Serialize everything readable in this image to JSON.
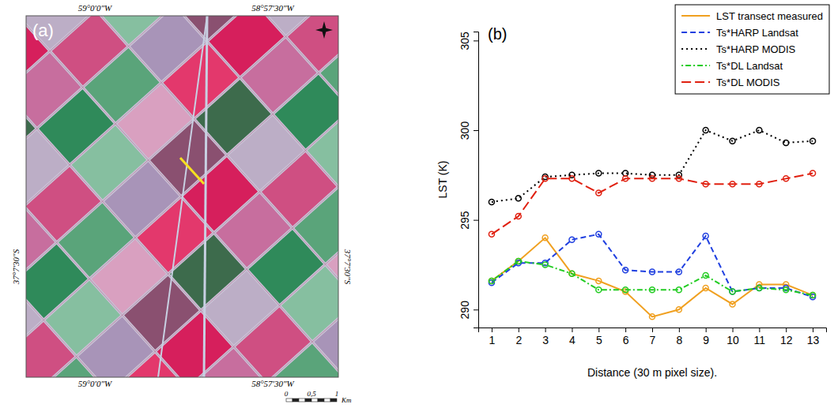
{
  "chart_data": {
    "type": "line",
    "title": "(b)",
    "x_label": "Distance (30 m pixel size).",
    "y_label": "LST (K)",
    "x": [
      1,
      2,
      3,
      4,
      5,
      6,
      7,
      8,
      9,
      10,
      11,
      12,
      13
    ],
    "xlim": [
      0.5,
      13.5
    ],
    "xticks": [
      1,
      2,
      3,
      4,
      5,
      6,
      7,
      8,
      9,
      10,
      11,
      12,
      13
    ],
    "ylim": [
      289,
      305.5
    ],
    "yticks": [
      290,
      295,
      300,
      305
    ],
    "grid": false,
    "legend": "top-right",
    "series": [
      {
        "name": "LST transect measured",
        "color": "#f0a020",
        "marker": "circle",
        "line_style": "solid",
        "values": [
          291.6,
          292.7,
          294.0,
          292.0,
          291.6,
          291.0,
          289.6,
          290.0,
          291.2,
          290.3,
          291.4,
          291.4,
          290.8
        ]
      },
      {
        "name": "Ts*HARP Landsat",
        "color": "#2040e0",
        "marker": "circle",
        "line_style": "dashed",
        "values": [
          291.5,
          292.6,
          292.6,
          293.9,
          294.2,
          292.2,
          292.1,
          292.1,
          294.1,
          291.0,
          291.2,
          291.2,
          290.7
        ]
      },
      {
        "name": "Ts*HARP MODIS",
        "color": "#000000",
        "marker": "circle",
        "line_style": "dotted",
        "values": [
          296.0,
          296.2,
          297.4,
          297.5,
          297.6,
          297.6,
          297.5,
          297.5,
          300.0,
          299.4,
          300.0,
          299.3,
          299.4
        ]
      },
      {
        "name": "Ts*DL Landsat",
        "color": "#22cc22",
        "marker": "circle",
        "line_style": "dotdash",
        "values": [
          291.6,
          292.7,
          292.5,
          292.0,
          291.1,
          291.1,
          291.1,
          291.1,
          291.9,
          291.0,
          291.2,
          291.1,
          290.8
        ]
      },
      {
        "name": "Ts*DL MODIS",
        "color": "#e02010",
        "marker": "circle",
        "line_style": "longdash",
        "values": [
          294.2,
          295.2,
          297.3,
          297.3,
          296.5,
          297.3,
          297.3,
          297.3,
          297.0,
          297.0,
          297.0,
          297.3,
          297.6
        ]
      }
    ]
  },
  "map": {
    "panel_label": "(a)",
    "top_labels": [
      "59°0'0\"W",
      "58°57'30\"W"
    ],
    "bottom_labels": [
      "59°0'0\"W",
      "58°57'30\"W"
    ],
    "left_label": "37°7'30\"S",
    "right_label": "37°7'30\"S",
    "scale_ticks": [
      "0",
      "0,5",
      "1"
    ],
    "scale_unit": "Km"
  }
}
